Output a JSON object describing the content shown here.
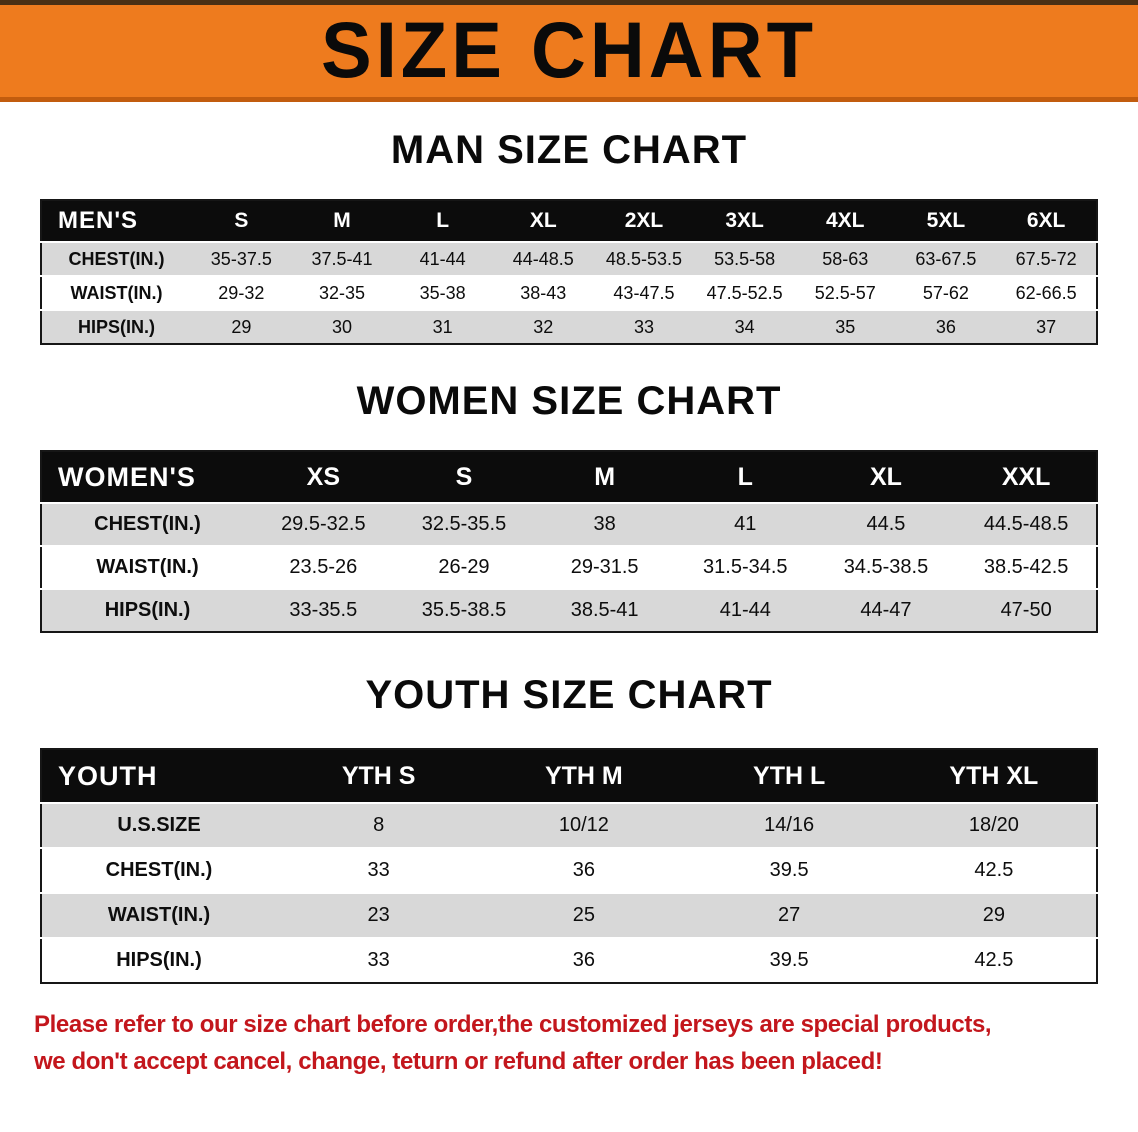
{
  "banner": {
    "title": "SIZE CHART"
  },
  "colors": {
    "banner_bg": "#ee7b1e",
    "header_bg": "#0c0c0c",
    "row_gray": "#d8d8d8",
    "note_red": "#c3161c"
  },
  "men": {
    "heading": "MAN SIZE CHART",
    "header": [
      "MEN'S",
      "S",
      "M",
      "L",
      "XL",
      "2XL",
      "3XL",
      "4XL",
      "5XL",
      "6XL"
    ],
    "rows": [
      [
        "CHEST(IN.)",
        "35-37.5",
        "37.5-41",
        "41-44",
        "44-48.5",
        "48.5-53.5",
        "53.5-58",
        "58-63",
        "63-67.5",
        "67.5-72"
      ],
      [
        "WAIST(IN.)",
        "29-32",
        "32-35",
        "35-38",
        "38-43",
        "43-47.5",
        "47.5-52.5",
        "52.5-57",
        "57-62",
        "62-66.5"
      ],
      [
        "HIPS(IN.)",
        "29",
        "30",
        "31",
        "32",
        "33",
        "34",
        "35",
        "36",
        "37"
      ]
    ]
  },
  "women": {
    "heading": "WOMEN SIZE CHART",
    "header": [
      "WOMEN'S",
      "XS",
      "S",
      "M",
      "L",
      "XL",
      "XXL"
    ],
    "rows": [
      [
        "CHEST(IN.)",
        "29.5-32.5",
        "32.5-35.5",
        "38",
        "41",
        "44.5",
        "44.5-48.5"
      ],
      [
        "WAIST(IN.)",
        "23.5-26",
        "26-29",
        "29-31.5",
        "31.5-34.5",
        "34.5-38.5",
        "38.5-42.5"
      ],
      [
        "HIPS(IN.)",
        "33-35.5",
        "35.5-38.5",
        "38.5-41",
        "41-44",
        "44-47",
        "47-50"
      ]
    ]
  },
  "youth": {
    "heading": "YOUTH SIZE CHART",
    "header": [
      "YOUTH",
      "YTH S",
      "YTH M",
      "YTH L",
      "YTH XL"
    ],
    "rows": [
      [
        "U.S.SIZE",
        "8",
        "10/12",
        "14/16",
        "18/20"
      ],
      [
        "CHEST(IN.)",
        "33",
        "36",
        "39.5",
        "42.5"
      ],
      [
        "WAIST(IN.)",
        "23",
        "25",
        "27",
        "29"
      ],
      [
        "HIPS(IN.)",
        "33",
        "36",
        "39.5",
        "42.5"
      ]
    ]
  },
  "note": {
    "line1": "Please refer to our size chart before order,the customized jerseys are special products,",
    "line2": "we don't accept cancel, change, teturn or refund after order has been placed!"
  }
}
